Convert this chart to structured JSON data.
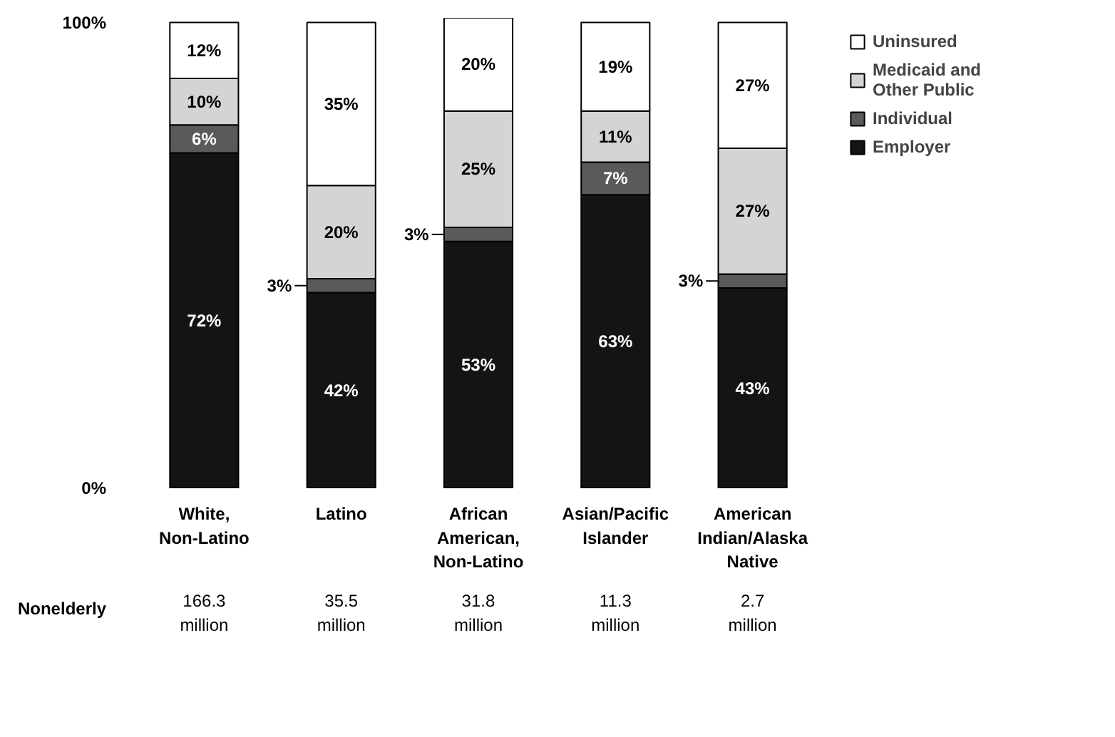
{
  "chart_data": {
    "type": "bar",
    "stacked": true,
    "categories": [
      "White,\nNon-Latino",
      "Latino",
      "African\nAmerican,\nNon-Latino",
      "Asian/Pacific\nIslander",
      "American\nIndian/Alaska\nNative"
    ],
    "series": [
      {
        "name": "Employer",
        "color": "#141414",
        "values": [
          72,
          42,
          53,
          63,
          43
        ],
        "value_labels": [
          "72%",
          "42%",
          "53%",
          "63%",
          "43%"
        ]
      },
      {
        "name": "Individual",
        "color": "#5a5a5a",
        "values": [
          6,
          3,
          3,
          7,
          3
        ],
        "value_labels": [
          "6%",
          "3%",
          "3%",
          "7%",
          "3%"
        ]
      },
      {
        "name": "Medicaid and\nOther Public",
        "color": "#d4d4d4",
        "values": [
          10,
          20,
          25,
          11,
          27
        ],
        "value_labels": [
          "10%",
          "20%",
          "25%",
          "11%",
          "27%"
        ]
      },
      {
        "name": "Uninsured",
        "color": "#ffffff",
        "values": [
          12,
          35,
          20,
          19,
          27
        ],
        "value_labels": [
          "12%",
          "35%",
          "20%",
          "19%",
          "27%"
        ]
      }
    ],
    "ylim": [
      0,
      101
    ],
    "yticks": [
      {
        "value": 0,
        "label": "0%"
      },
      {
        "value": 100,
        "label": "100%"
      }
    ],
    "legend": "top right",
    "annotations": [
      "Nonelderly",
      "166.3\nmillion",
      "35.5\nmillion",
      "31.8\nmillion",
      "11.3\nmillion",
      "2.7\nmillion"
    ]
  }
}
